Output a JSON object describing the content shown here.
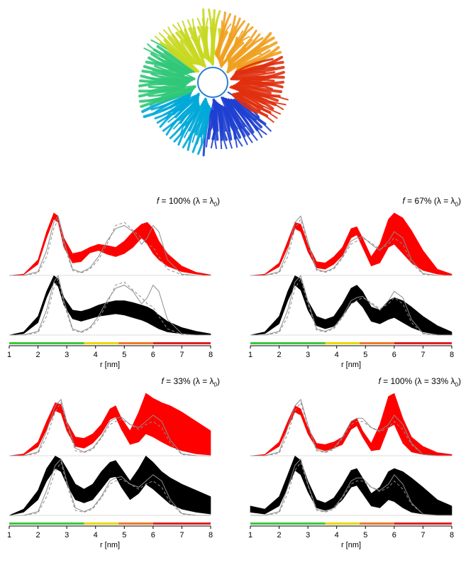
{
  "figure": {
    "xlabel": "r [nm]",
    "colors": {
      "fit_fill": "#ff0000",
      "exp_fill": "#000000",
      "reference": "#8c8c8c"
    },
    "colorbar": [
      {
        "from": 1.0,
        "to": 3.6,
        "color": "#3cc83c"
      },
      {
        "from": 3.6,
        "to": 4.8,
        "color": "#e8d800"
      },
      {
        "from": 4.8,
        "to": 6.0,
        "color": "#f07828"
      },
      {
        "from": 6.0,
        "to": 8.0,
        "color": "#e02020"
      }
    ]
  },
  "image": {
    "name": "protein-ring-structure-ribbon",
    "palette": [
      "#1e3fd0",
      "#00a8d8",
      "#30c878",
      "#c8d820",
      "#f0a020",
      "#e03010"
    ]
  },
  "chart_data": [
    {
      "type": "area",
      "title_prefix": "f",
      "title_text": " = 100% (λ = λ",
      "title_sub": "0",
      "title_end": ")",
      "xlim": [
        1,
        8
      ],
      "xticks": [
        1,
        2,
        3,
        4,
        5,
        6,
        7,
        8
      ],
      "x": [
        1.0,
        1.5,
        2.0,
        2.3,
        2.55,
        2.7,
        2.9,
        3.2,
        3.5,
        3.8,
        4.1,
        4.4,
        4.7,
        5.0,
        5.3,
        5.6,
        5.8,
        6.0,
        6.2,
        6.5,
        7.0,
        7.5,
        8.0
      ],
      "series": [
        {
          "name": "",
          "color": "#ff0000",
          "upper": [
            0.0,
            0.02,
            0.25,
            0.7,
            1.0,
            0.95,
            0.6,
            0.35,
            0.38,
            0.45,
            0.5,
            0.48,
            0.45,
            0.55,
            0.7,
            0.82,
            0.85,
            0.75,
            0.55,
            0.35,
            0.15,
            0.05,
            0.01
          ],
          "lower": [
            0.0,
            0.01,
            0.18,
            0.6,
            0.9,
            0.85,
            0.45,
            0.2,
            0.22,
            0.36,
            0.4,
            0.34,
            0.3,
            0.35,
            0.45,
            0.6,
            0.5,
            0.35,
            0.25,
            0.15,
            0.06,
            0.02,
            0.0
          ]
        },
        {
          "name": "",
          "color": "#000000",
          "upper": [
            0.0,
            0.05,
            0.3,
            0.7,
            0.95,
            0.9,
            0.6,
            0.4,
            0.38,
            0.42,
            0.48,
            0.52,
            0.55,
            0.55,
            0.52,
            0.48,
            0.45,
            0.4,
            0.32,
            0.22,
            0.12,
            0.06,
            0.02
          ],
          "lower": [
            0.0,
            0.02,
            0.2,
            0.6,
            0.85,
            0.78,
            0.48,
            0.26,
            0.22,
            0.26,
            0.3,
            0.32,
            0.34,
            0.32,
            0.28,
            0.24,
            0.2,
            0.15,
            0.1,
            0.05,
            0.02,
            0.0,
            0.0
          ]
        }
      ],
      "reference_solid": [
        0.0,
        0.0,
        0.06,
        0.4,
        0.85,
        0.95,
        0.55,
        0.1,
        0.05,
        0.12,
        0.3,
        0.55,
        0.75,
        0.8,
        0.7,
        0.5,
        0.6,
        0.8,
        0.7,
        0.25,
        0.02,
        0.0,
        0.0
      ],
      "reference_dashed": [
        0.0,
        0.0,
        0.04,
        0.3,
        0.75,
        0.9,
        0.5,
        0.08,
        0.04,
        0.1,
        0.25,
        0.5,
        0.8,
        0.85,
        0.72,
        0.6,
        0.5,
        0.45,
        0.3,
        0.1,
        0.01,
        0.0,
        0.0
      ]
    },
    {
      "type": "area",
      "title_prefix": "f",
      "title_text": " = 67% (λ = λ",
      "title_sub": "0",
      "title_end": ")",
      "xlim": [
        1,
        8
      ],
      "xticks": [
        1,
        2,
        3,
        4,
        5,
        6,
        7,
        8
      ],
      "x": [
        1.0,
        1.5,
        2.0,
        2.3,
        2.55,
        2.75,
        3.0,
        3.3,
        3.6,
        3.9,
        4.2,
        4.5,
        4.7,
        4.9,
        5.2,
        5.5,
        5.8,
        6.0,
        6.3,
        6.6,
        7.0,
        7.5,
        8.0
      ],
      "series": [
        {
          "name": "",
          "color": "#ff0000",
          "upper": [
            0.0,
            0.02,
            0.2,
            0.55,
            0.85,
            0.82,
            0.5,
            0.22,
            0.2,
            0.3,
            0.45,
            0.75,
            0.78,
            0.6,
            0.3,
            0.5,
            0.9,
            1.0,
            0.92,
            0.72,
            0.4,
            0.1,
            0.02
          ],
          "lower": [
            0.0,
            0.01,
            0.14,
            0.45,
            0.75,
            0.7,
            0.38,
            0.12,
            0.1,
            0.18,
            0.32,
            0.6,
            0.65,
            0.45,
            0.15,
            0.2,
            0.45,
            0.5,
            0.35,
            0.2,
            0.08,
            0.02,
            0.0
          ]
        },
        {
          "name": "",
          "color": "#000000",
          "upper": [
            0.0,
            0.05,
            0.3,
            0.7,
            0.95,
            0.9,
            0.55,
            0.3,
            0.25,
            0.3,
            0.5,
            0.75,
            0.8,
            0.7,
            0.45,
            0.4,
            0.55,
            0.6,
            0.55,
            0.45,
            0.3,
            0.15,
            0.05
          ],
          "lower": [
            0.0,
            0.02,
            0.18,
            0.55,
            0.8,
            0.72,
            0.4,
            0.15,
            0.1,
            0.14,
            0.3,
            0.5,
            0.55,
            0.45,
            0.22,
            0.18,
            0.25,
            0.28,
            0.2,
            0.12,
            0.05,
            0.01,
            0.0
          ]
        }
      ],
      "reference_solid": [
        0.0,
        0.0,
        0.06,
        0.4,
        0.85,
        0.95,
        0.55,
        0.1,
        0.06,
        0.12,
        0.3,
        0.55,
        0.6,
        0.62,
        0.5,
        0.4,
        0.55,
        0.7,
        0.6,
        0.25,
        0.03,
        0.0,
        0.0
      ],
      "reference_dashed": [
        0.0,
        0.0,
        0.04,
        0.3,
        0.75,
        0.9,
        0.5,
        0.08,
        0.05,
        0.1,
        0.28,
        0.5,
        0.55,
        0.6,
        0.52,
        0.42,
        0.5,
        0.6,
        0.5,
        0.2,
        0.02,
        0.0,
        0.0
      ]
    },
    {
      "type": "area",
      "title_prefix": "f",
      "title_text": " = 33% (λ = λ",
      "title_sub": "0",
      "title_end": ")",
      "xlim": [
        1,
        8
      ],
      "xticks": [
        1,
        2,
        3,
        4,
        5,
        6,
        7,
        8
      ],
      "x": [
        1.0,
        1.5,
        2.0,
        2.3,
        2.6,
        2.8,
        3.0,
        3.3,
        3.6,
        3.9,
        4.2,
        4.5,
        4.7,
        4.9,
        5.2,
        5.5,
        5.75,
        6.0,
        6.3,
        6.6,
        7.0,
        7.5,
        8.0
      ],
      "series": [
        {
          "name": "",
          "color": "#ff0000",
          "upper": [
            0.0,
            0.03,
            0.22,
            0.55,
            0.85,
            0.82,
            0.55,
            0.3,
            0.28,
            0.35,
            0.5,
            0.75,
            0.8,
            0.6,
            0.4,
            0.7,
            1.0,
            0.92,
            0.85,
            0.8,
            0.7,
            0.55,
            0.4
          ],
          "lower": [
            0.0,
            0.01,
            0.14,
            0.42,
            0.72,
            0.68,
            0.4,
            0.15,
            0.12,
            0.2,
            0.35,
            0.58,
            0.62,
            0.42,
            0.18,
            0.22,
            0.35,
            0.3,
            0.22,
            0.15,
            0.08,
            0.03,
            0.01
          ]
        },
        {
          "name": "",
          "color": "#000000",
          "upper": [
            0.0,
            0.1,
            0.4,
            0.75,
            0.95,
            0.9,
            0.75,
            0.5,
            0.42,
            0.5,
            0.7,
            0.85,
            0.88,
            0.75,
            0.55,
            0.75,
            0.95,
            0.85,
            0.7,
            0.6,
            0.5,
            0.4,
            0.3
          ],
          "lower": [
            0.0,
            0.05,
            0.25,
            0.55,
            0.75,
            0.7,
            0.5,
            0.25,
            0.2,
            0.25,
            0.42,
            0.6,
            0.62,
            0.45,
            0.25,
            0.35,
            0.5,
            0.42,
            0.3,
            0.18,
            0.1,
            0.05,
            0.02
          ]
        }
      ],
      "reference_solid": [
        0.0,
        0.0,
        0.06,
        0.4,
        0.8,
        0.9,
        0.55,
        0.12,
        0.06,
        0.12,
        0.3,
        0.55,
        0.6,
        0.62,
        0.5,
        0.45,
        0.55,
        0.65,
        0.55,
        0.25,
        0.03,
        0.0,
        0.0
      ],
      "reference_dashed": [
        0.0,
        0.0,
        0.04,
        0.3,
        0.7,
        0.85,
        0.5,
        0.08,
        0.05,
        0.1,
        0.28,
        0.5,
        0.55,
        0.58,
        0.5,
        0.42,
        0.5,
        0.55,
        0.45,
        0.2,
        0.02,
        0.0,
        0.0
      ]
    },
    {
      "type": "area",
      "title_prefix": "f",
      "title_text": " = 100% (λ = 33% λ",
      "title_sub": "0",
      "title_end": ")",
      "xlim": [
        1,
        8
      ],
      "xticks": [
        1,
        2,
        3,
        4,
        5,
        6,
        7,
        8
      ],
      "x": [
        1.0,
        1.5,
        2.0,
        2.3,
        2.55,
        2.75,
        3.0,
        3.3,
        3.6,
        3.9,
        4.2,
        4.5,
        4.7,
        4.9,
        5.2,
        5.5,
        5.8,
        6.0,
        6.3,
        6.6,
        7.0,
        7.5,
        8.0
      ],
      "series": [
        {
          "name": "",
          "color": "#ff0000",
          "upper": [
            0.0,
            0.02,
            0.22,
            0.55,
            0.8,
            0.75,
            0.45,
            0.2,
            0.18,
            0.22,
            0.3,
            0.55,
            0.6,
            0.4,
            0.2,
            0.5,
            0.95,
            1.0,
            0.6,
            0.3,
            0.15,
            0.05,
            0.02
          ],
          "lower": [
            0.0,
            0.01,
            0.15,
            0.45,
            0.7,
            0.65,
            0.35,
            0.12,
            0.08,
            0.12,
            0.18,
            0.42,
            0.48,
            0.3,
            0.08,
            0.1,
            0.45,
            0.5,
            0.2,
            0.06,
            0.02,
            0.0,
            0.0
          ]
        },
        {
          "name": "",
          "color": "#000000",
          "upper": [
            0.15,
            0.1,
            0.3,
            0.65,
            0.95,
            0.88,
            0.55,
            0.25,
            0.2,
            0.28,
            0.48,
            0.72,
            0.75,
            0.6,
            0.35,
            0.45,
            0.7,
            0.75,
            0.7,
            0.6,
            0.45,
            0.25,
            0.15
          ],
          "lower": [
            0.05,
            0.02,
            0.15,
            0.45,
            0.72,
            0.65,
            0.38,
            0.12,
            0.08,
            0.12,
            0.25,
            0.45,
            0.48,
            0.35,
            0.15,
            0.12,
            0.25,
            0.22,
            0.12,
            0.05,
            0.02,
            0.0,
            0.0
          ]
        }
      ],
      "reference_solid": [
        0.0,
        0.0,
        0.06,
        0.45,
        0.8,
        0.9,
        0.5,
        0.1,
        0.06,
        0.12,
        0.3,
        0.55,
        0.6,
        0.6,
        0.45,
        0.4,
        0.5,
        0.65,
        0.5,
        0.2,
        0.02,
        0.0,
        0.0
      ],
      "reference_dashed": [
        0.0,
        0.0,
        0.04,
        0.35,
        0.72,
        0.85,
        0.48,
        0.08,
        0.05,
        0.1,
        0.28,
        0.5,
        0.55,
        0.55,
        0.45,
        0.38,
        0.45,
        0.55,
        0.42,
        0.18,
        0.02,
        0.0,
        0.0
      ]
    }
  ]
}
